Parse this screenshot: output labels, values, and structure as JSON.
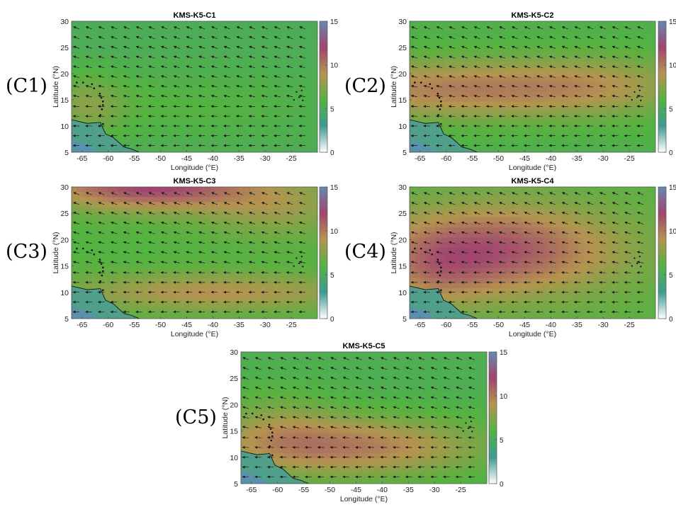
{
  "figure": {
    "background": "#ffffff"
  },
  "colorbar": {
    "ticks": [
      0,
      5,
      10,
      15
    ],
    "range": [
      0,
      15
    ],
    "stops": [
      "#ffffff",
      "#3e9a93",
      "#53b341",
      "#b59450",
      "#a14570",
      "#6488b0"
    ]
  },
  "chart_data": [
    {
      "type": "heatmap",
      "tag": "(C1)",
      "title": "KMS-K5-C1",
      "xlabel": "Longitude (°E)",
      "ylabel": "Latitude (°N)",
      "xticks": [
        -65,
        -60,
        -55,
        -50,
        -45,
        -40,
        -35,
        -30,
        -25
      ],
      "yticks": [
        5,
        10,
        15,
        20,
        25,
        30
      ],
      "xlim": [
        -67,
        -20
      ],
      "ylim": [
        5,
        30
      ],
      "field": {
        "base": 5.2,
        "blobs": [
          {
            "lon": -64,
            "lat": 14,
            "sx": 5,
            "sy": 4,
            "amp": 2.0
          },
          {
            "lon": -45,
            "lat": 14,
            "sx": 20,
            "sy": 5,
            "amp": 0.8
          }
        ]
      }
    },
    {
      "type": "heatmap",
      "tag": "(C2)",
      "title": "KMS-K5-C2",
      "xlabel": "Longitude (°E)",
      "ylabel": "Latitude (°N)",
      "xticks": [
        -65,
        -60,
        -55,
        -50,
        -45,
        -40,
        -35,
        -30,
        -25
      ],
      "yticks": [
        5,
        10,
        15,
        20,
        25,
        30
      ],
      "xlim": [
        -67,
        -20
      ],
      "ylim": [
        5,
        30
      ],
      "field": {
        "base": 5.6,
        "blobs": [
          {
            "lon": -58,
            "lat": 17,
            "sx": 22,
            "sy": 4,
            "amp": 4.2
          },
          {
            "lon": -30,
            "lat": 18,
            "sx": 12,
            "sy": 4,
            "amp": 1.8
          }
        ]
      }
    },
    {
      "type": "heatmap",
      "tag": "(C3)",
      "title": "KMS-K5-C3",
      "xlabel": "Longitude (°E)",
      "ylabel": "Latitude (°N)",
      "xticks": [
        -65,
        -60,
        -55,
        -50,
        -45,
        -40,
        -35,
        -30,
        -25
      ],
      "yticks": [
        5,
        10,
        15,
        20,
        25,
        30
      ],
      "xlim": [
        -67,
        -20
      ],
      "ylim": [
        5,
        30
      ],
      "field": {
        "base": 6.0,
        "blobs": [
          {
            "lon": -52,
            "lat": 30,
            "sx": 14,
            "sy": 3,
            "amp": 6.0
          },
          {
            "lon": -40,
            "lat": 10,
            "sx": 20,
            "sy": 2.5,
            "amp": 3.0
          },
          {
            "lon": -28,
            "lat": 26,
            "sx": 10,
            "sy": 4,
            "amp": 2.0
          }
        ]
      }
    },
    {
      "type": "heatmap",
      "tag": "(C4)",
      "title": "KMS-K5-C4",
      "xlabel": "Longitude (°E)",
      "ylabel": "Latitude (°N)",
      "xticks": [
        -65,
        -60,
        -55,
        -50,
        -45,
        -40,
        -35,
        -30,
        -25
      ],
      "yticks": [
        5,
        10,
        15,
        20,
        25,
        30
      ],
      "xlim": [
        -67,
        -20
      ],
      "ylim": [
        5,
        30
      ],
      "field": {
        "base": 6.2,
        "blobs": [
          {
            "lon": -50,
            "lat": 18,
            "sx": 16,
            "sy": 6,
            "amp": 5.2
          },
          {
            "lon": -62,
            "lat": 14,
            "sx": 7,
            "sy": 5,
            "amp": 1.8
          }
        ]
      }
    },
    {
      "type": "heatmap",
      "tag": "(C5)",
      "title": "KMS-K5-C5",
      "xlabel": "Longitude (°E)",
      "ylabel": "Latitude (°N)",
      "xticks": [
        -65,
        -60,
        -55,
        -50,
        -45,
        -40,
        -35,
        -30,
        -25
      ],
      "yticks": [
        5,
        10,
        15,
        20,
        25,
        30
      ],
      "xlim": [
        -67,
        -20
      ],
      "ylim": [
        5,
        30
      ],
      "field": {
        "base": 5.4,
        "blobs": [
          {
            "lon": -46,
            "lat": 12,
            "sx": 18,
            "sy": 4,
            "amp": 4.5
          },
          {
            "lon": -60,
            "lat": 16,
            "sx": 8,
            "sy": 5,
            "amp": 1.6
          }
        ]
      }
    }
  ]
}
